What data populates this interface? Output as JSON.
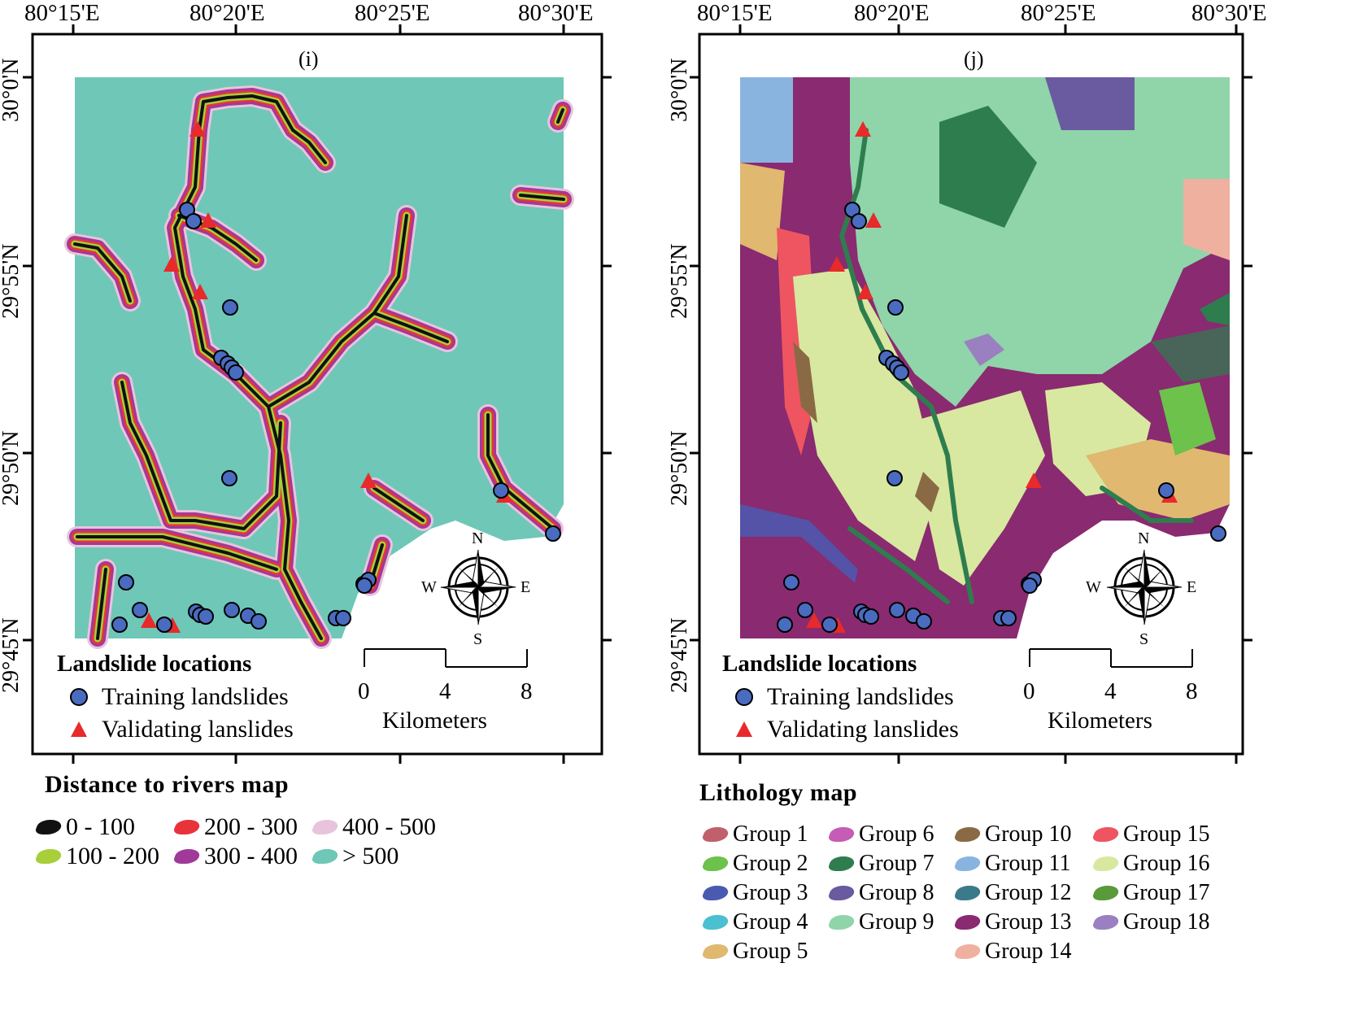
{
  "left_map": {
    "panel_label": "(i)",
    "x_ticks": [
      "80°15'E",
      "80°20'E",
      "80°25'E",
      "80°30'E"
    ],
    "y_ticks": [
      "30°0'N",
      "29°55'N",
      "29°50'N",
      "29°45'N"
    ],
    "legend_title": "Landslide locations",
    "legend_training": "Training landslides",
    "legend_validating": "Validating lanslides",
    "scale_labels": [
      "0",
      "4",
      "8"
    ],
    "scale_unit": "Kilometers",
    "compass": {
      "n": "N",
      "s": "S",
      "e": "E",
      "w": "W"
    },
    "map_title": "Distance to rivers map",
    "classes": [
      {
        "label": "0 - 100",
        "color": "#111111"
      },
      {
        "label": "200 - 300",
        "color": "#e8333a"
      },
      {
        "label": "400 - 500",
        "color": "#e8c4dc"
      },
      {
        "label": "100 - 200",
        "color": "#a8cf3a"
      },
      {
        "label": "300 - 400",
        "color": "#a03a9a"
      },
      {
        "label": "> 500",
        "color": "#6ec7b7"
      }
    ]
  },
  "right_map": {
    "panel_label": "(j)",
    "x_ticks": [
      "80°15'E",
      "80°20'E",
      "80°25'E",
      "80°30'E"
    ],
    "y_ticks": [
      "30°0'N",
      "29°55'N",
      "29°50'N",
      "29°45'N"
    ],
    "legend_title": "Landslide locations",
    "legend_training": "Training landslides",
    "legend_validating": "Validating lanslides",
    "scale_labels": [
      "0",
      "4",
      "8"
    ],
    "scale_unit": "Kilometers",
    "compass": {
      "n": "N",
      "s": "S",
      "e": "E",
      "w": "W"
    },
    "map_title": "Lithology  map",
    "groups": [
      {
        "label": "Group 1",
        "color": "#c0606a"
      },
      {
        "label": "Group 6",
        "color": "#c55cb5"
      },
      {
        "label": "Group 10",
        "color": "#8a6a45"
      },
      {
        "label": "Group 15",
        "color": "#ee5560"
      },
      {
        "label": "Group 2",
        "color": "#6cc24a"
      },
      {
        "label": "Group 7",
        "color": "#2e7d4f"
      },
      {
        "label": "Group 11",
        "color": "#8ab4e0"
      },
      {
        "label": "Group 16",
        "color": "#d8e8a0"
      },
      {
        "label": "Group 3",
        "color": "#4a5ab0"
      },
      {
        "label": "Group 8",
        "color": "#6a5aa0"
      },
      {
        "label": "Group 12",
        "color": "#3a7a8a"
      },
      {
        "label": "Group 17",
        "color": "#5a9a3a"
      },
      {
        "label": "Group 4",
        "color": "#4ac0d0"
      },
      {
        "label": "Group 9",
        "color": "#90d4aa"
      },
      {
        "label": "Group 13",
        "color": "#8a2a70"
      },
      {
        "label": "Group 18",
        "color": "#9a80c0"
      },
      {
        "label": "Group 5",
        "color": "#e0b870"
      },
      {
        "label": "Group 14",
        "color": "#f0b0a0"
      }
    ]
  }
}
